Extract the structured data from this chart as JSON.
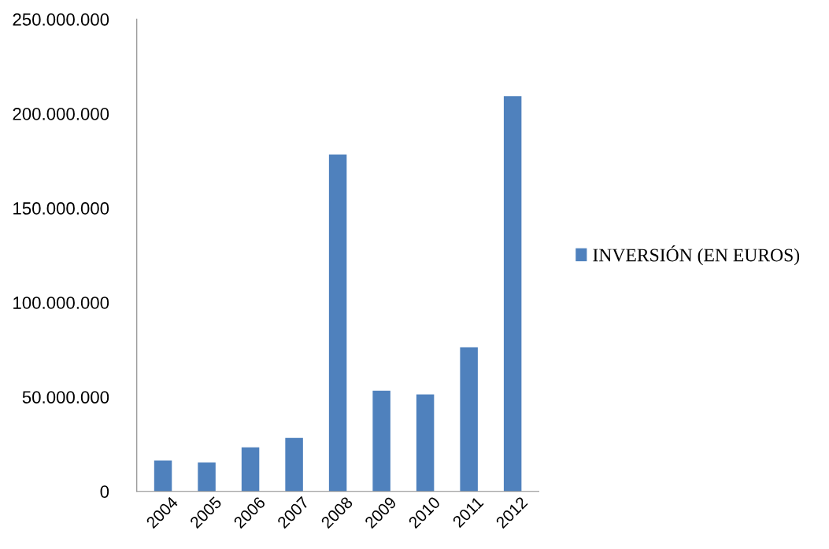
{
  "chart_data": {
    "type": "bar",
    "categories": [
      "2004",
      "2005",
      "2006",
      "2007",
      "2008",
      "2009",
      "2010",
      "2011",
      "2012"
    ],
    "series": [
      {
        "name": "INVERSIÓN (EN EUROS)",
        "color": "#4f81bd",
        "values": [
          16000000,
          15000000,
          23000000,
          28000000,
          178000000,
          53000000,
          51000000,
          76000000,
          209000000
        ]
      }
    ],
    "ylim": [
      0,
      250000000
    ],
    "yticks": [
      0,
      {
        "value": 50000000,
        "label": "50.000.000"
      },
      {
        "value": 100000000,
        "label": "100.000.000"
      },
      {
        "value": 150000000,
        "label": "150.000.000"
      },
      {
        "value": 200000000,
        "label": "200.000.000"
      },
      {
        "value": 250000000,
        "label": "250.000.000"
      }
    ],
    "grid": false,
    "legend": "right"
  }
}
